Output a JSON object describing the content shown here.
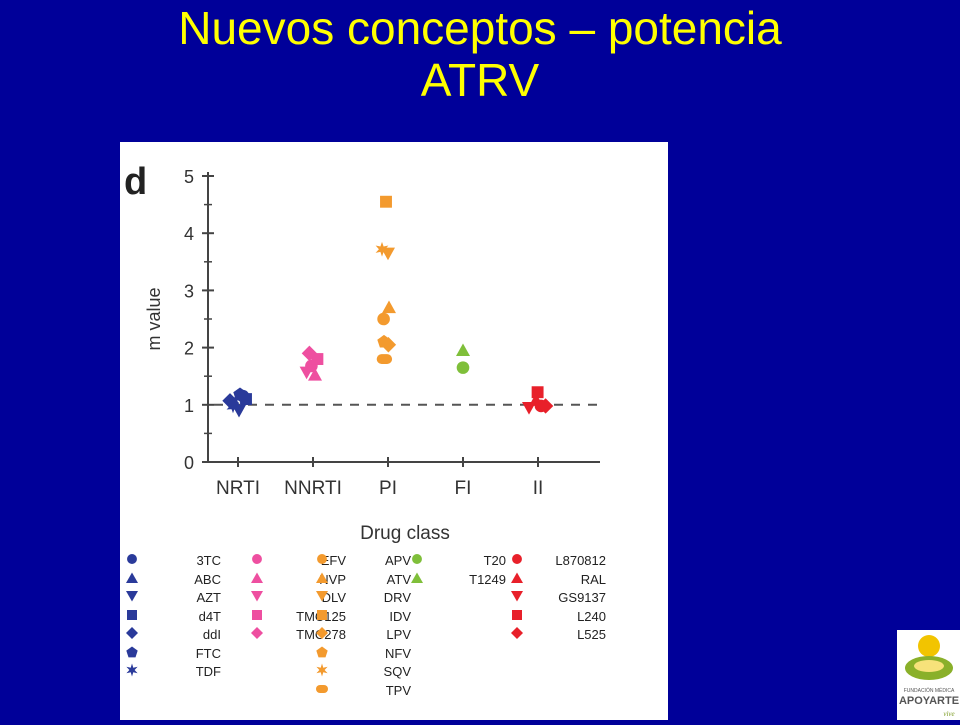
{
  "slide": {
    "title_line1": "Nuevos conceptos – potencia",
    "title_line2": "ATRV",
    "colors": {
      "background": "#000099",
      "title": "#ffff00"
    }
  },
  "chart_data": {
    "type": "scatter",
    "panel_letter": "d",
    "title": "",
    "xlabel": "Drug class",
    "ylabel": "m value",
    "ylim": [
      0,
      5
    ],
    "yticks": [
      "0",
      "1",
      "2",
      "3",
      "4",
      "5"
    ],
    "categories": [
      "NRTI",
      "NNRTI",
      "PI",
      "FI",
      "II"
    ],
    "reference_line": {
      "y": 1,
      "style": "dashed"
    },
    "grid": false,
    "classes": [
      {
        "name": "NRTI",
        "color": "#2a3a9a",
        "drugs": [
          {
            "name": "3TC",
            "marker": "circle",
            "x": 0.25,
            "y": 1.15
          },
          {
            "name": "ABC",
            "marker": "triangle-up",
            "x": -0.15,
            "y": 1.02
          },
          {
            "name": "AZT",
            "marker": "triangle-down",
            "x": 0.05,
            "y": 0.9
          },
          {
            "name": "d4T",
            "marker": "square",
            "x": 0.4,
            "y": 1.1
          },
          {
            "name": "ddI",
            "marker": "diamond",
            "x": -0.4,
            "y": 1.07
          },
          {
            "name": "FTC",
            "marker": "pentagon",
            "x": 0.1,
            "y": 1.18
          },
          {
            "name": "TDF",
            "marker": "star",
            "x": -0.25,
            "y": 0.98
          }
        ]
      },
      {
        "name": "NNRTI",
        "color": "#ee4fa0",
        "drugs": [
          {
            "name": "EFV",
            "marker": "circle",
            "x": -0.08,
            "y": 1.68
          },
          {
            "name": "NVP",
            "marker": "triangle-up",
            "x": 0.1,
            "y": 1.52
          },
          {
            "name": "DLV",
            "marker": "triangle-down",
            "x": -0.32,
            "y": 1.57
          },
          {
            "name": "TMC125",
            "marker": "square",
            "x": 0.22,
            "y": 1.8
          },
          {
            "name": "TMC278",
            "marker": "diamond",
            "x": -0.18,
            "y": 1.9
          }
        ]
      },
      {
        "name": "PI",
        "color": "#f39a2e",
        "drugs": [
          {
            "name": "APV",
            "marker": "circle",
            "x": -0.22,
            "y": 2.5
          },
          {
            "name": "ATV",
            "marker": "triangle-up",
            "x": 0.05,
            "y": 2.7
          },
          {
            "name": "DRV",
            "marker": "triangle-down",
            "x": 0.0,
            "y": 3.65
          },
          {
            "name": "IDV",
            "marker": "square",
            "x": -0.1,
            "y": 4.55
          },
          {
            "name": "LPV",
            "marker": "diamond",
            "x": 0.02,
            "y": 2.05
          },
          {
            "name": "NFV",
            "marker": "pentagon",
            "x": -0.2,
            "y": 2.1
          },
          {
            "name": "SQV",
            "marker": "star",
            "x": -0.3,
            "y": 3.72
          },
          {
            "name": "TPV",
            "marker": "pill",
            "x": -0.18,
            "y": 1.8
          }
        ]
      },
      {
        "name": "FI",
        "color": "#7fbf3a",
        "drugs": [
          {
            "name": "T20",
            "marker": "circle",
            "x": 0.0,
            "y": 1.65
          },
          {
            "name": "T1249",
            "marker": "triangle-up",
            "x": 0.0,
            "y": 1.95
          }
        ]
      },
      {
        "name": "II",
        "color": "#e8202a",
        "drugs": [
          {
            "name": "L870812",
            "marker": "circle",
            "x": 0.15,
            "y": 0.98
          },
          {
            "name": "RAL",
            "marker": "triangle-up",
            "x": -0.1,
            "y": 1.08
          },
          {
            "name": "GS9137",
            "marker": "triangle-down",
            "x": -0.45,
            "y": 0.95
          },
          {
            "name": "L240",
            "marker": "square",
            "x": -0.02,
            "y": 1.22
          },
          {
            "name": "L525",
            "marker": "diamond",
            "x": 0.38,
            "y": 0.98
          }
        ]
      }
    ]
  },
  "logo": {
    "line1": "FUNDACIÓN MÉDICA",
    "line2": "APOYARTE",
    "line3": "vive"
  }
}
